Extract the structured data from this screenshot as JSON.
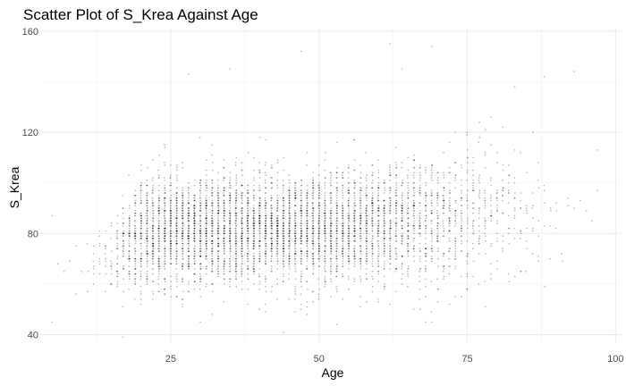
{
  "chart_data": {
    "type": "scatter",
    "title": "Scatter Plot of S_Krea Against Age",
    "xlabel": "Age",
    "ylabel": "S_Krea",
    "xlim": [
      3,
      101
    ],
    "ylim": [
      37,
      161
    ],
    "x_ticks": [
      25,
      50,
      75,
      100
    ],
    "y_ticks": [
      40,
      80,
      120,
      160
    ],
    "x_tick_labels": [
      "25",
      "50",
      "75",
      "100"
    ],
    "y_tick_labels": [
      "40",
      "80",
      "120",
      "160"
    ],
    "grid": true,
    "point_color": "#000000",
    "point_opacity": 0.25,
    "density": [
      {
        "age": 10,
        "center": 66,
        "spread": 10,
        "count": 4
      },
      {
        "age": 15,
        "center": 72,
        "spread": 12,
        "count": 40
      },
      {
        "age": 20,
        "center": 80,
        "spread": 14,
        "count": 260
      },
      {
        "age": 25,
        "center": 82,
        "spread": 14,
        "count": 340
      },
      {
        "age": 30,
        "center": 82,
        "spread": 14,
        "count": 340
      },
      {
        "age": 35,
        "center": 82,
        "spread": 14,
        "count": 340
      },
      {
        "age": 40,
        "center": 82,
        "spread": 14,
        "count": 340
      },
      {
        "age": 45,
        "center": 82,
        "spread": 14,
        "count": 340
      },
      {
        "age": 50,
        "center": 82,
        "spread": 14,
        "count": 320
      },
      {
        "age": 55,
        "center": 83,
        "spread": 14,
        "count": 300
      },
      {
        "age": 60,
        "center": 84,
        "spread": 15,
        "count": 260
      },
      {
        "age": 65,
        "center": 85,
        "spread": 15,
        "count": 200
      },
      {
        "age": 70,
        "center": 86,
        "spread": 16,
        "count": 150
      },
      {
        "age": 75,
        "center": 87,
        "spread": 17,
        "count": 100
      },
      {
        "age": 80,
        "center": 88,
        "spread": 17,
        "count": 60
      },
      {
        "age": 85,
        "center": 88,
        "spread": 18,
        "count": 30
      },
      {
        "age": 90,
        "center": 86,
        "spread": 18,
        "count": 8
      },
      {
        "age": 95,
        "center": 90,
        "spread": 14,
        "count": 2
      }
    ],
    "outliers": [
      {
        "x": 5,
        "y": 45
      },
      {
        "x": 9,
        "y": 56
      },
      {
        "x": 12,
        "y": 60
      },
      {
        "x": 28,
        "y": 143
      },
      {
        "x": 35,
        "y": 145
      },
      {
        "x": 47,
        "y": 152
      },
      {
        "x": 62,
        "y": 155
      },
      {
        "x": 64,
        "y": 145
      },
      {
        "x": 69,
        "y": 154
      },
      {
        "x": 83,
        "y": 138
      },
      {
        "x": 88,
        "y": 142
      },
      {
        "x": 93,
        "y": 144
      },
      {
        "x": 97,
        "y": 113
      },
      {
        "x": 44,
        "y": 41
      },
      {
        "x": 68,
        "y": 45
      }
    ]
  }
}
